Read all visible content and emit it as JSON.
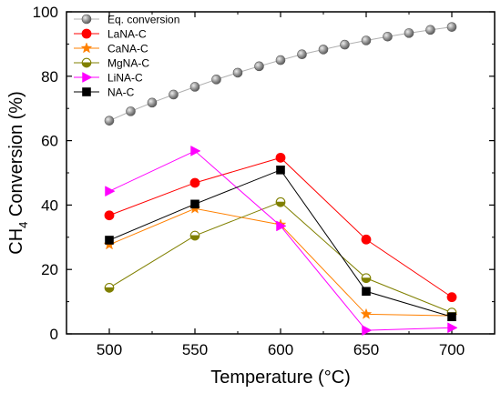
{
  "chart_data": {
    "type": "line",
    "xlabel": "Temperature (°C)",
    "ylabel_main": "CH",
    "ylabel_sub": "4",
    "ylabel_rest": " Conversion (%)",
    "xlim": [
      475,
      725
    ],
    "ylim": [
      0,
      100
    ],
    "x_ticks": [
      500,
      550,
      600,
      650,
      700
    ],
    "y_ticks": [
      0,
      20,
      40,
      60,
      80,
      100
    ],
    "grid": false,
    "legend_position": "top-left",
    "series": [
      {
        "name": "Eq. conversion",
        "color": "#8c8c8c",
        "marker": "sphere",
        "x": [
          500,
          512.5,
          525,
          537.5,
          550,
          562.5,
          575,
          587.5,
          600,
          612.5,
          625,
          637.5,
          650,
          662.5,
          675,
          687.5,
          700
        ],
        "values": [
          66.2,
          69.1,
          71.8,
          74.3,
          76.7,
          79.0,
          81.1,
          83.1,
          85.0,
          86.8,
          88.3,
          89.8,
          91.1,
          92.3,
          93.4,
          94.4,
          95.3
        ]
      },
      {
        "name": "LaNA-C",
        "color": "#ff0000",
        "marker": "circle",
        "x": [
          500,
          550,
          600,
          650,
          700
        ],
        "values": [
          36.8,
          46.9,
          54.7,
          29.3,
          11.4
        ]
      },
      {
        "name": "CaNA-C",
        "color": "#ff8000",
        "marker": "star",
        "x": [
          500,
          550,
          600,
          650,
          700
        ],
        "values": [
          27.7,
          38.9,
          33.9,
          6.1,
          5.6
        ]
      },
      {
        "name": "MgNA-C",
        "color": "#808000",
        "marker": "half-circle",
        "x": [
          500,
          550,
          600,
          650,
          700
        ],
        "values": [
          14.3,
          30.5,
          40.9,
          17.3,
          6.6
        ]
      },
      {
        "name": "LiNA-C",
        "color": "#ff00ff",
        "marker": "triangle-right",
        "x": [
          500,
          550,
          600,
          650,
          700
        ],
        "values": [
          44.3,
          56.8,
          33.5,
          1.1,
          1.9
        ]
      },
      {
        "name": "NA-C",
        "color": "#000000",
        "marker": "square",
        "x": [
          500,
          550,
          600,
          650,
          700
        ],
        "values": [
          29.1,
          40.3,
          50.9,
          13.2,
          5.3
        ]
      }
    ]
  }
}
